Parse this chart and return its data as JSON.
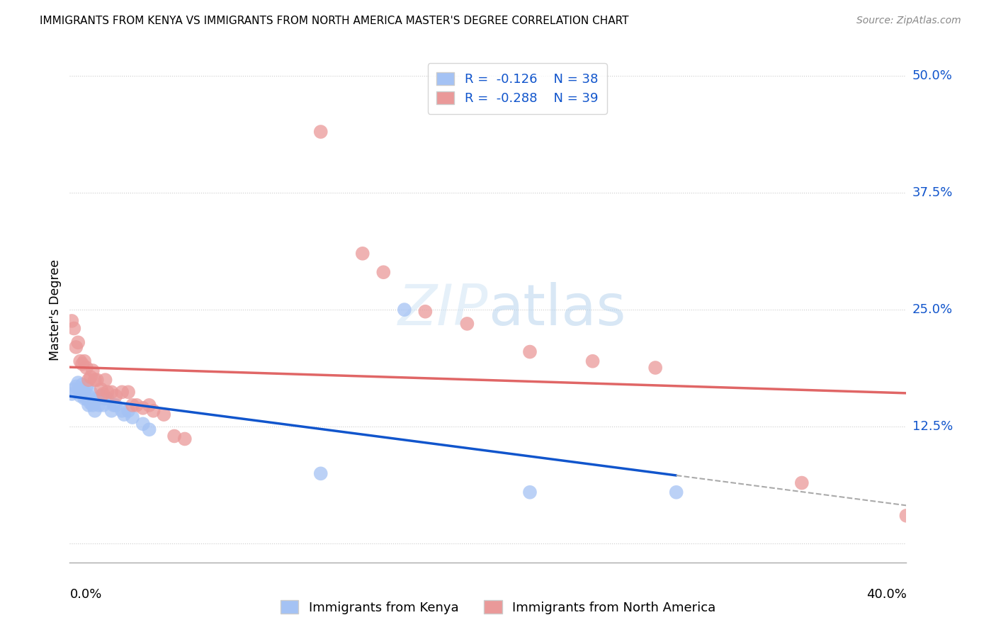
{
  "title": "IMMIGRANTS FROM KENYA VS IMMIGRANTS FROM NORTH AMERICA MASTER'S DEGREE CORRELATION CHART",
  "source": "Source: ZipAtlas.com",
  "ylabel": "Master's Degree",
  "ytick_values": [
    0.0,
    0.125,
    0.25,
    0.375,
    0.5
  ],
  "ytick_labels": [
    "",
    "12.5%",
    "25.0%",
    "37.5%",
    "50.0%"
  ],
  "xlim": [
    0.0,
    0.4
  ],
  "ylim": [
    -0.02,
    0.52
  ],
  "legend_blue_r": "-0.126",
  "legend_blue_n": "38",
  "legend_pink_r": "-0.288",
  "legend_pink_n": "39",
  "legend_labels": [
    "Immigrants from Kenya",
    "Immigrants from North America"
  ],
  "blue_color": "#a4c2f4",
  "pink_color": "#ea9999",
  "blue_line_color": "#1155cc",
  "pink_line_color": "#e06666",
  "axis_label_color": "#1155cc",
  "blue_x": [
    0.001,
    0.002,
    0.003,
    0.004,
    0.005,
    0.005,
    0.006,
    0.006,
    0.007,
    0.007,
    0.008,
    0.008,
    0.009,
    0.009,
    0.01,
    0.01,
    0.011,
    0.012,
    0.012,
    0.013,
    0.014,
    0.015,
    0.016,
    0.017,
    0.018,
    0.02,
    0.021,
    0.022,
    0.025,
    0.026,
    0.028,
    0.03,
    0.035,
    0.038,
    0.16,
    0.22,
    0.29,
    0.12
  ],
  "blue_y": [
    0.16,
    0.165,
    0.168,
    0.172,
    0.165,
    0.158,
    0.17,
    0.162,
    0.162,
    0.155,
    0.168,
    0.155,
    0.158,
    0.148,
    0.162,
    0.15,
    0.148,
    0.152,
    0.142,
    0.155,
    0.148,
    0.158,
    0.148,
    0.155,
    0.155,
    0.142,
    0.148,
    0.148,
    0.142,
    0.138,
    0.142,
    0.135,
    0.128,
    0.122,
    0.25,
    0.055,
    0.055,
    0.075
  ],
  "pink_x": [
    0.001,
    0.002,
    0.003,
    0.004,
    0.005,
    0.006,
    0.007,
    0.008,
    0.009,
    0.01,
    0.011,
    0.012,
    0.013,
    0.015,
    0.016,
    0.017,
    0.018,
    0.02,
    0.022,
    0.025,
    0.028,
    0.03,
    0.032,
    0.035,
    0.038,
    0.04,
    0.045,
    0.05,
    0.055,
    0.12,
    0.14,
    0.15,
    0.17,
    0.19,
    0.22,
    0.25,
    0.28,
    0.35,
    0.4
  ],
  "pink_y": [
    0.238,
    0.23,
    0.21,
    0.215,
    0.195,
    0.192,
    0.195,
    0.188,
    0.175,
    0.178,
    0.185,
    0.175,
    0.175,
    0.165,
    0.16,
    0.175,
    0.162,
    0.162,
    0.158,
    0.162,
    0.162,
    0.148,
    0.148,
    0.145,
    0.148,
    0.142,
    0.138,
    0.115,
    0.112,
    0.44,
    0.31,
    0.29,
    0.248,
    0.235,
    0.205,
    0.195,
    0.188,
    0.065,
    0.03
  ],
  "watermark_color": "#d0e4f5"
}
